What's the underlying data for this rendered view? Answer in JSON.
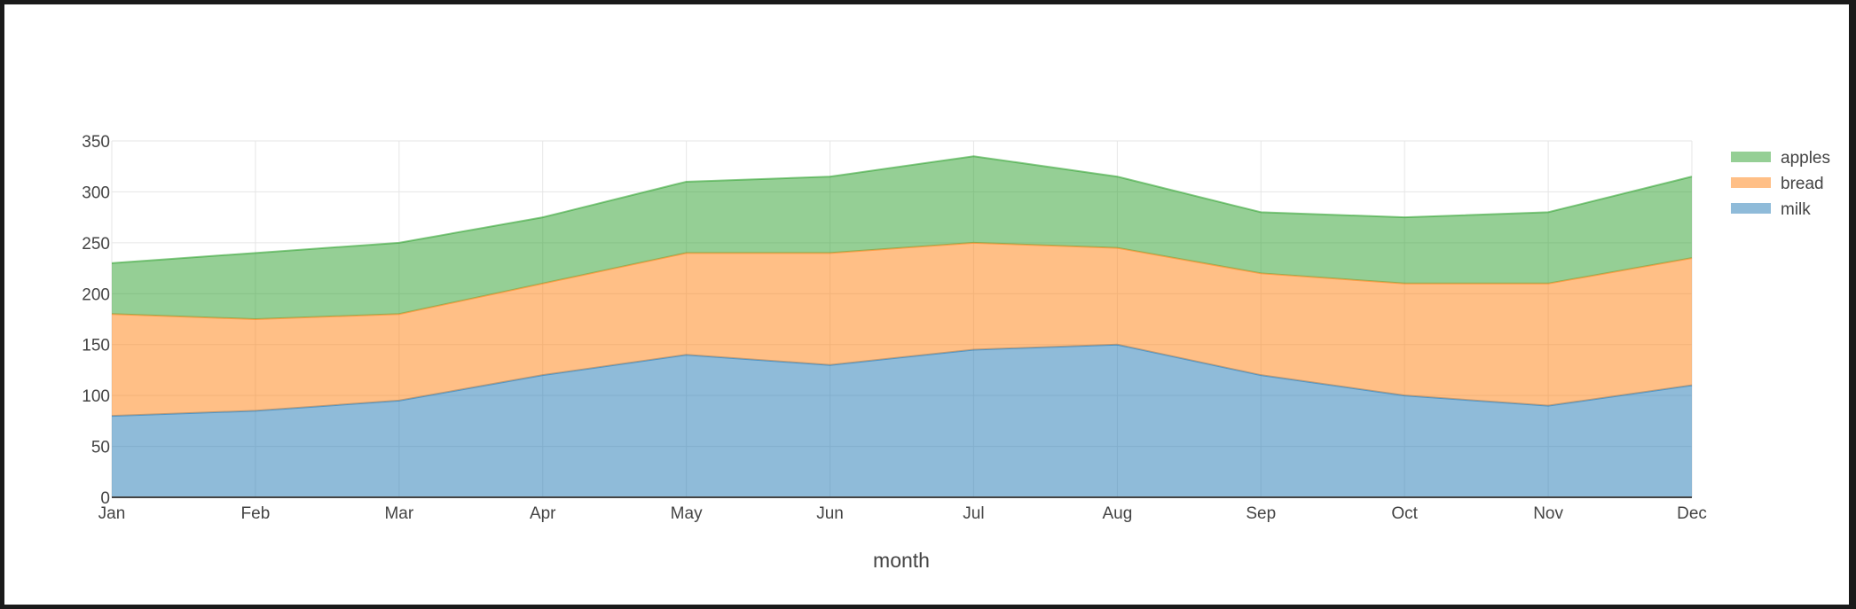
{
  "chart_data": {
    "type": "area",
    "stacked": true,
    "categories": [
      "Jan",
      "Feb",
      "Mar",
      "Apr",
      "May",
      "Jun",
      "Jul",
      "Aug",
      "Sep",
      "Oct",
      "Nov",
      "Dec"
    ],
    "series": [
      {
        "name": "milk",
        "color": "#1f77b4",
        "values": [
          80,
          85,
          95,
          120,
          140,
          130,
          145,
          150,
          120,
          100,
          90,
          110
        ]
      },
      {
        "name": "bread",
        "color": "#ff7f0e",
        "values": [
          100,
          90,
          85,
          90,
          100,
          110,
          105,
          95,
          100,
          110,
          120,
          125
        ]
      },
      {
        "name": "apples",
        "color": "#2ca02c",
        "values": [
          50,
          65,
          70,
          65,
          70,
          75,
          85,
          70,
          60,
          65,
          70,
          80
        ]
      }
    ],
    "legend_order": [
      "apples",
      "bread",
      "milk"
    ],
    "xlabel": "month",
    "ylabel": "",
    "ylim": [
      0,
      350
    ],
    "yticks": [
      0,
      50,
      100,
      150,
      200,
      250,
      300,
      350
    ],
    "grid": true,
    "legend_position": "top-right",
    "fill_opacity": 0.5
  }
}
